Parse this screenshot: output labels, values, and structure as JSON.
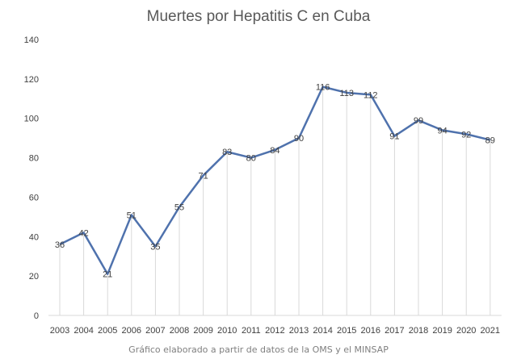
{
  "chart_data": {
    "type": "line",
    "title": "Muertes por Hepatitis C en Cuba",
    "source_note": "Gráfico elaborado a partir de datos de la OMS y el MINSAP",
    "categories": [
      "2003",
      "2004",
      "2005",
      "2006",
      "2007",
      "2008",
      "2009",
      "2010",
      "2011",
      "2012",
      "2013",
      "2014",
      "2015",
      "2016",
      "2017",
      "2018",
      "2019",
      "2020",
      "2021"
    ],
    "series": [
      {
        "values": [
          36,
          42,
          21,
          51,
          35,
          55,
          71,
          83,
          80,
          84,
          90,
          116,
          113,
          112,
          91,
          99,
          94,
          92,
          89
        ]
      }
    ],
    "ylim": [
      0,
      140
    ],
    "yticks": [
      0,
      20,
      40,
      60,
      80,
      100,
      120,
      140
    ],
    "data_labels": true,
    "drop_lines": true,
    "grid": false,
    "legend": "none",
    "line_color": "#4f72ad"
  }
}
